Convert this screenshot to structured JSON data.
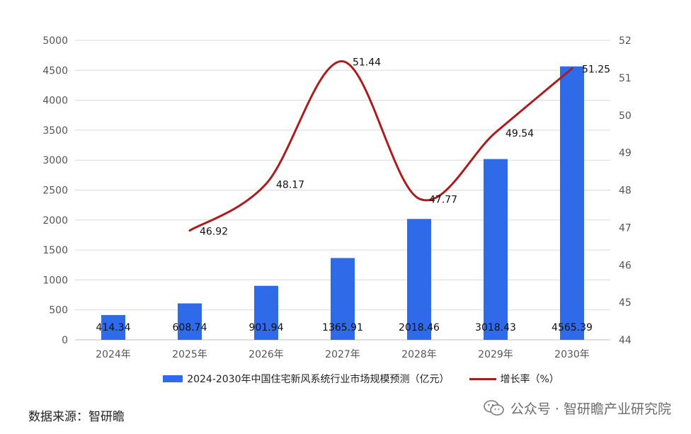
{
  "chart_data": {
    "type": "bar",
    "categories": [
      "2024年",
      "2025年",
      "2026年",
      "2027年",
      "2028年",
      "2029年",
      "2030年"
    ],
    "series": [
      {
        "name": "2024-2030年中国住宅新风系统行业市场规模预测（亿元）",
        "type": "bar",
        "axis": "left",
        "values": [
          414.34,
          608.74,
          901.94,
          1365.91,
          2018.46,
          3018.43,
          4565.39
        ],
        "labels": [
          "414.34",
          "608.74",
          "901.94",
          "1365.91",
          "2018.46",
          "3018.43",
          "4565.39"
        ],
        "color": "#2F6BE8"
      },
      {
        "name": "增长率（%）",
        "type": "line",
        "axis": "right",
        "values": [
          null,
          46.92,
          48.17,
          51.44,
          47.77,
          49.54,
          51.25
        ],
        "labels": [
          "",
          "46.92",
          "48.17",
          "51.44",
          "47.77",
          "49.54",
          "51.25"
        ],
        "color": "#A81D1D"
      }
    ],
    "y_left": {
      "min": 0,
      "max": 5000,
      "step": 500,
      "ticks": [
        "0",
        "500",
        "1000",
        "1500",
        "2000",
        "2500",
        "3000",
        "3500",
        "4000",
        "4500",
        "5000"
      ]
    },
    "y_right": {
      "min": 44,
      "max": 52,
      "step": 1,
      "ticks": [
        "44",
        "45",
        "46",
        "47",
        "48",
        "49",
        "50",
        "51",
        "52"
      ]
    },
    "grid": true,
    "legend_position": "bottom"
  },
  "footer": {
    "source": "数据来源：智研瞻",
    "watermark": "公众号 · 智研瞻产业研究院"
  },
  "colors": {
    "bar": "#2F6BE8",
    "line": "#A81D1D",
    "grid": "#D9D9D9"
  }
}
